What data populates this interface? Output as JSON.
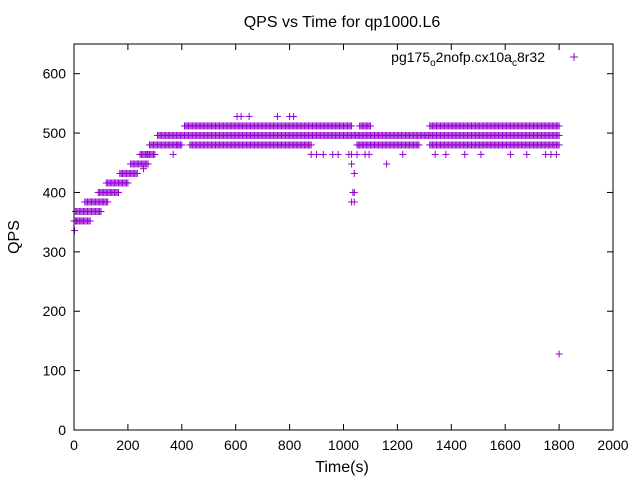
{
  "chart_data": {
    "type": "scatter",
    "title": "QPS vs Time for qp1000.L6",
    "xlabel": "Time(s)",
    "ylabel": "QPS",
    "xlim": [
      0,
      2000
    ],
    "ylim": [
      0,
      650
    ],
    "x_ticks": [
      "0",
      "200",
      "400",
      "600",
      "800",
      "1000",
      "1200",
      "1400",
      "1600",
      "1800",
      "2000"
    ],
    "y_ticks": [
      "0",
      "100",
      "200",
      "300",
      "400",
      "500",
      "600"
    ],
    "grid": false,
    "legend_position": "top-right",
    "series_color": "#9400d3",
    "series": [
      {
        "name": "pg175_o2nofp.cx10a_c8r32",
        "name_parts": [
          {
            "text": "pg175",
            "sub": false
          },
          {
            "text": "o",
            "sub": true
          },
          {
            "text": "2nofp.cx10a",
            "sub": false
          },
          {
            "text": "c",
            "sub": true
          },
          {
            "text": "8r32",
            "sub": false
          }
        ],
        "bands": [
          {
            "x_range": [
              0,
              60
            ],
            "y_start": 352,
            "y_end": 352
          },
          {
            "x_range": [
              5,
              100
            ],
            "y_start": 368,
            "y_end": 368
          },
          {
            "x_range": [
              40,
              125
            ],
            "y_start": 384,
            "y_end": 384
          },
          {
            "x_range": [
              90,
              165
            ],
            "y_start": 400,
            "y_end": 400
          },
          {
            "x_range": [
              120,
              200
            ],
            "y_start": 416,
            "y_end": 416
          },
          {
            "x_range": [
              170,
              235
            ],
            "y_start": 432,
            "y_end": 432
          },
          {
            "x_range": [
              210,
              275
            ],
            "y_start": 448,
            "y_end": 448
          },
          {
            "x_range": [
              245,
              300
            ],
            "y_start": 464,
            "y_end": 464
          },
          {
            "x_range": [
              280,
              400
            ],
            "y_start": 480,
            "y_end": 480
          },
          {
            "x_range": [
              310,
              1800
            ],
            "y_start": 496,
            "y_end": 496
          },
          {
            "x_range": [
              410,
              1030
            ],
            "y_start": 512,
            "y_end": 512
          },
          {
            "x_range": [
              1060,
              1100
            ],
            "y_start": 512,
            "y_end": 512
          },
          {
            "x_range": [
              1320,
              1800
            ],
            "y_start": 512,
            "y_end": 512
          },
          {
            "x_range": [
              430,
              880
            ],
            "y_start": 480,
            "y_end": 480
          },
          {
            "x_range": [
              1050,
              1280
            ],
            "y_start": 480,
            "y_end": 480
          },
          {
            "x_range": [
              1320,
              1800
            ],
            "y_start": 480,
            "y_end": 480
          }
        ],
        "points": [
          [
            2,
            336
          ],
          [
            10,
            352
          ],
          [
            30,
            352
          ],
          [
            258,
            440
          ],
          [
            272,
            464
          ],
          [
            368,
            464
          ],
          [
            385,
            480
          ],
          [
            605,
            528
          ],
          [
            620,
            528
          ],
          [
            650,
            528
          ],
          [
            755,
            528
          ],
          [
            800,
            528
          ],
          [
            815,
            528
          ],
          [
            880,
            464
          ],
          [
            900,
            464
          ],
          [
            925,
            464
          ],
          [
            960,
            464
          ],
          [
            980,
            464
          ],
          [
            1020,
            464
          ],
          [
            1030,
            464
          ],
          [
            1050,
            464
          ],
          [
            1080,
            464
          ],
          [
            1095,
            464
          ],
          [
            1030,
            448
          ],
          [
            1040,
            432
          ],
          [
            1035,
            400
          ],
          [
            1040,
            400
          ],
          [
            1030,
            384
          ],
          [
            1040,
            384
          ],
          [
            1160,
            448
          ],
          [
            1220,
            464
          ],
          [
            1340,
            464
          ],
          [
            1380,
            464
          ],
          [
            1450,
            464
          ],
          [
            1510,
            464
          ],
          [
            1620,
            464
          ],
          [
            1680,
            464
          ],
          [
            1750,
            464
          ],
          [
            1770,
            464
          ],
          [
            1790,
            464
          ],
          [
            1800,
            128
          ]
        ]
      }
    ]
  }
}
